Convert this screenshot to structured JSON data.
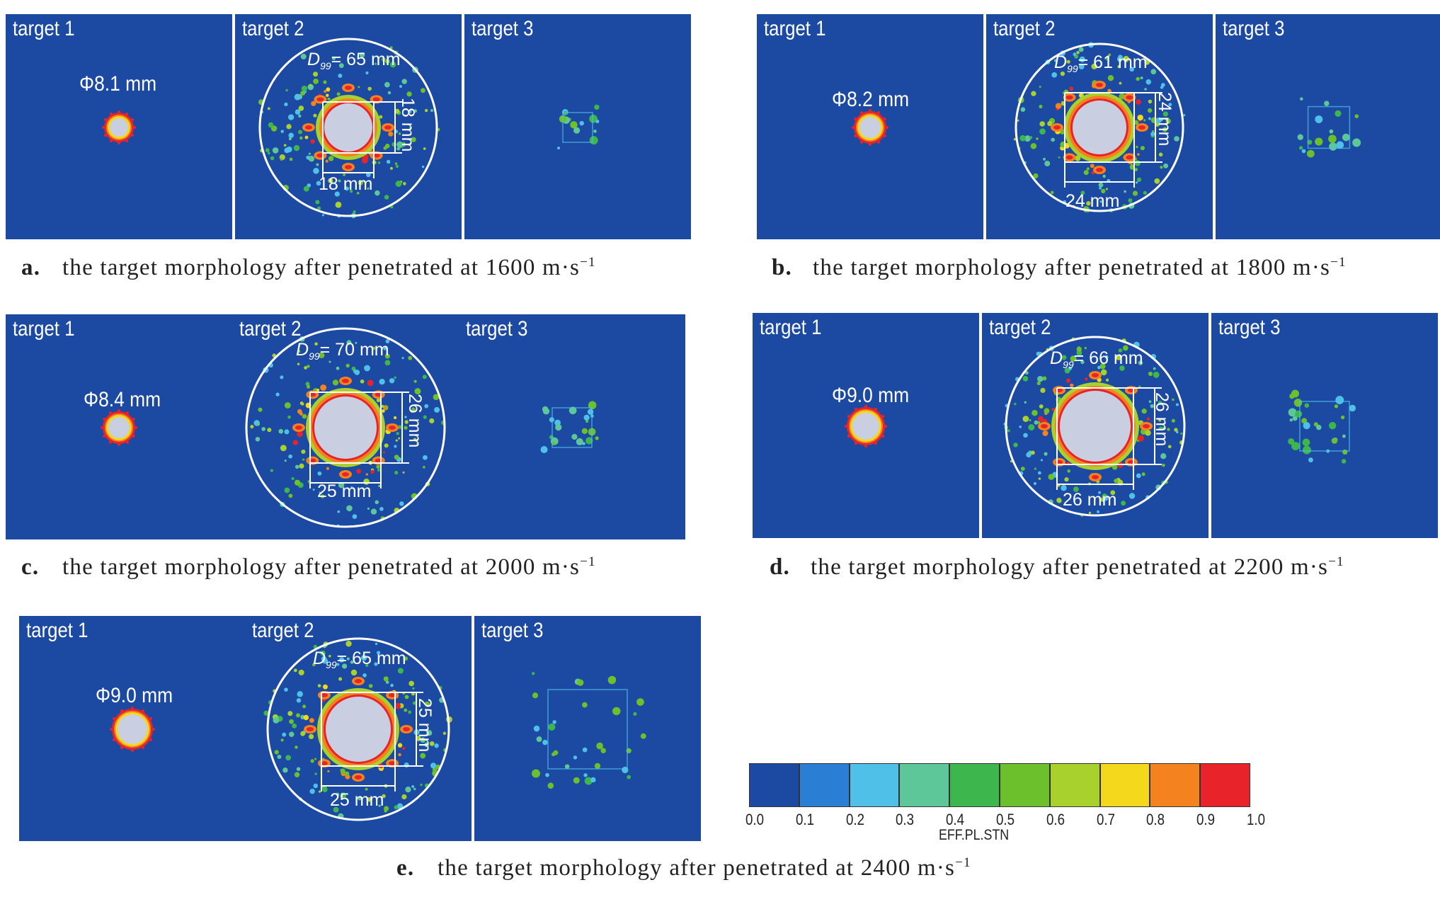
{
  "figures": [
    {
      "id": "a",
      "caption_letter": "a.",
      "caption_text": "the target morphology after penetrated at 1600 m·s",
      "caption_sup": "−1",
      "target1": {
        "label": "target 1",
        "diameter_label": "Φ8.1 mm"
      },
      "target2": {
        "label": "target 2",
        "d99_symbol": "D",
        "d99_sub": "99",
        "d99_value": "= 65 mm",
        "vertical_dim": "18 mm",
        "horizontal_dim": "18 mm"
      },
      "target3": {
        "label": "target 3"
      }
    },
    {
      "id": "b",
      "caption_letter": "b.",
      "caption_text": "the target morphology after penetrated at 1800 m·s",
      "caption_sup": "−1",
      "target1": {
        "label": "target 1",
        "diameter_label": "Φ8.2 mm"
      },
      "target2": {
        "label": "target 2",
        "d99_symbol": "D",
        "d99_sub": "99",
        "d99_value": "= 61 mm",
        "vertical_dim": "24 mm",
        "horizontal_dim": "24 mm"
      },
      "target3": {
        "label": "target 3"
      }
    },
    {
      "id": "c",
      "caption_letter": "c.",
      "caption_text": "the target morphology after penetrated at 2000 m·s",
      "caption_sup": "−1",
      "target1": {
        "label": "target 1",
        "diameter_label": "Φ8.4 mm"
      },
      "target2": {
        "label": "target 2",
        "d99_symbol": "D",
        "d99_sub": "99",
        "d99_value": "= 70 mm",
        "vertical_dim": "26 mm",
        "horizontal_dim": "25 mm"
      },
      "target3": {
        "label": "target 3"
      }
    },
    {
      "id": "d",
      "caption_letter": "d.",
      "caption_text": "the target morphology after penetrated at 2200 m·s",
      "caption_sup": "−1",
      "target1": {
        "label": "target 1",
        "diameter_label": "Φ9.0 mm"
      },
      "target2": {
        "label": "target 2",
        "d99_symbol": "D",
        "d99_sub": "99",
        "d99_value": "= 66 mm",
        "vertical_dim": "26 mm",
        "horizontal_dim": "26 mm"
      },
      "target3": {
        "label": "target 3"
      }
    },
    {
      "id": "e",
      "caption_letter": "e.",
      "caption_text": "the target morphology after penetrated at 2400 m·s",
      "caption_sup": "−1",
      "target1": {
        "label": "target 1",
        "diameter_label": "Φ9.0 mm"
      },
      "target2": {
        "label": "target 2",
        "d99_symbol": "D",
        "d99_sub": "99",
        "d99_value": "= 65 mm",
        "vertical_dim": "25 mm",
        "horizontal_dim": "25 mm"
      },
      "target3": {
        "label": "target 3"
      }
    }
  ],
  "colorbar": {
    "title": "EFF.PL.STN",
    "ticks": [
      "0.0",
      "0.1",
      "0.2",
      "0.3",
      "0.4",
      "0.5",
      "0.6",
      "0.7",
      "0.8",
      "0.9",
      "1.0"
    ],
    "colors": [
      "#1c4aa3",
      "#2a7fd4",
      "#4fc0e8",
      "#5dc79a",
      "#3db64e",
      "#6cc02c",
      "#a8d12d",
      "#f4d81c",
      "#f4821e",
      "#e8242a"
    ]
  },
  "palette": {
    "background": "#1c4aa3",
    "hole": "#c9cfe0",
    "outline": "#ffffff"
  }
}
